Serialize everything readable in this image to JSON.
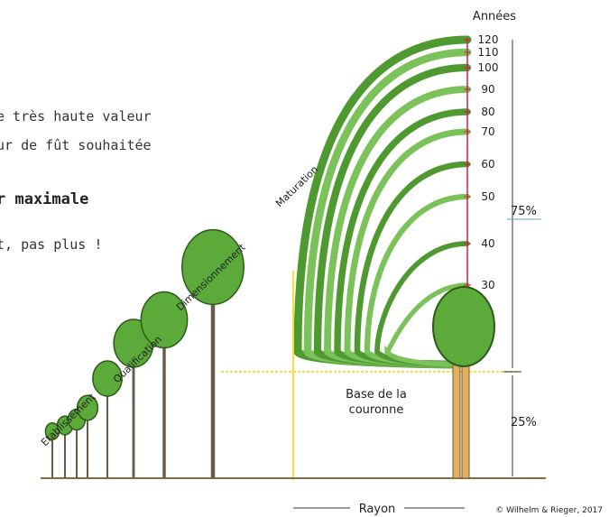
{
  "left_text": [
    "e très haute valeur",
    "ur de fût souhaitée",
    "r maximale",
    "t, pas plus !"
  ],
  "axis_label": "Années",
  "years": [
    "120",
    "110",
    "100",
    "90",
    "80",
    "70",
    "60",
    "50",
    "40",
    "30"
  ],
  "phases": [
    "Etablissement",
    "Qualification",
    "Dimensionnement",
    "Maturation"
  ],
  "share_top": "75%",
  "share_bottom": "25%",
  "crown_base": [
    "Base de la",
    "couronne"
  ],
  "radius_label": "Rayon",
  "credit": "© Wilhelm & Rieger, 2017"
}
